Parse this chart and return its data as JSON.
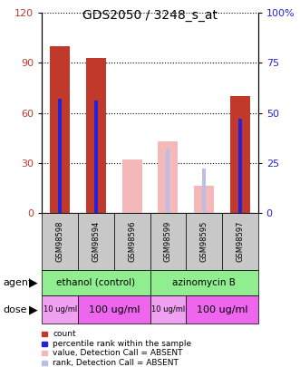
{
  "title": "GDS2050 / 3248_s_at",
  "samples": [
    "GSM98598",
    "GSM98594",
    "GSM98596",
    "GSM98599",
    "GSM98595",
    "GSM98597"
  ],
  "count_values": [
    100,
    93,
    0,
    43,
    0,
    70
  ],
  "rank_values": [
    57,
    56,
    0,
    32,
    0,
    47
  ],
  "absent_count_values": [
    0,
    0,
    32,
    43,
    16,
    0
  ],
  "absent_rank_values": [
    0,
    0,
    0,
    32,
    22,
    0
  ],
  "ylim_left": [
    0,
    120
  ],
  "ylim_right": [
    0,
    100
  ],
  "left_ticks": [
    0,
    30,
    60,
    90,
    120
  ],
  "right_ticks": [
    0,
    25,
    50,
    75,
    100
  ],
  "right_tick_labels": [
    "0",
    "25",
    "50",
    "75",
    "100%"
  ],
  "color_red": "#c0392b",
  "color_blue": "#2222dd",
  "color_pink": "#f4b8b8",
  "color_light_blue": "#b8c0e8",
  "color_green": "#90ee90",
  "color_magenta": "#ee66ee",
  "color_light_magenta": "#f0a0f0",
  "color_gray": "#c8c8c8",
  "agent_ethanol": "ethanol (control)",
  "agent_azinomycin": "azinomycin B",
  "legend_items": [
    {
      "label": "count",
      "color": "#c0392b"
    },
    {
      "label": "percentile rank within the sample",
      "color": "#2222dd"
    },
    {
      "label": "value, Detection Call = ABSENT",
      "color": "#f4b8b8"
    },
    {
      "label": "rank, Detection Call = ABSENT",
      "color": "#b8c0e8"
    }
  ]
}
